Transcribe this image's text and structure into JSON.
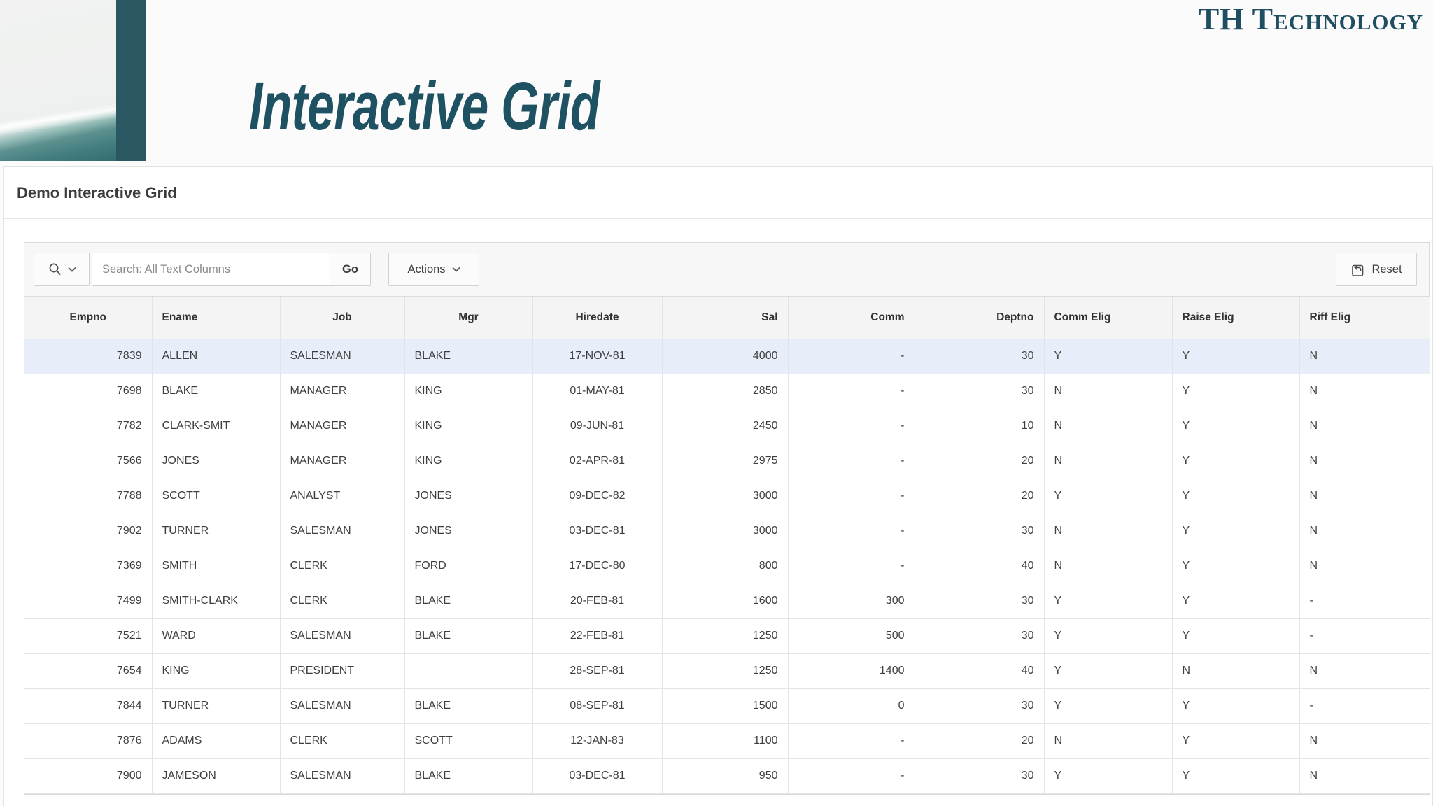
{
  "logo_text": "TH Technology",
  "page_title": "Interactive Grid",
  "colors": {
    "brand_teal": "#1f4e63",
    "title_teal": "#1e5162",
    "brand_bar": "#295863",
    "selected_row_bg": "#e8eef9"
  },
  "region": {
    "title": "Demo Interactive Grid",
    "toolbar": {
      "search_placeholder": "Search: All Text Columns",
      "search_value": "",
      "go_label": "Go",
      "actions_label": "Actions",
      "reset_label": "Reset"
    },
    "grid": {
      "columns": [
        "Empno",
        "Ename",
        "Job",
        "Mgr",
        "Hiredate",
        "Sal",
        "Comm",
        "Deptno",
        "Comm Elig",
        "Raise Elig",
        "Riff Elig"
      ],
      "selected_row": 0,
      "rows": [
        [
          "7839",
          "ALLEN",
          "SALESMAN",
          "BLAKE",
          "17-NOV-81",
          "4000",
          "-",
          "30",
          "Y",
          "Y",
          "N"
        ],
        [
          "7698",
          "BLAKE",
          "MANAGER",
          "KING",
          "01-MAY-81",
          "2850",
          "-",
          "30",
          "N",
          "Y",
          "N"
        ],
        [
          "7782",
          "CLARK-SMIT",
          "MANAGER",
          "KING",
          "09-JUN-81",
          "2450",
          "-",
          "10",
          "N",
          "Y",
          "N"
        ],
        [
          "7566",
          "JONES",
          "MANAGER",
          "KING",
          "02-APR-81",
          "2975",
          "-",
          "20",
          "N",
          "Y",
          "N"
        ],
        [
          "7788",
          "SCOTT",
          "ANALYST",
          "JONES",
          "09-DEC-82",
          "3000",
          "-",
          "20",
          "Y",
          "Y",
          "N"
        ],
        [
          "7902",
          "TURNER",
          "SALESMAN",
          "JONES",
          "03-DEC-81",
          "3000",
          "-",
          "30",
          "N",
          "Y",
          "N"
        ],
        [
          "7369",
          "SMITH",
          "CLERK",
          "FORD",
          "17-DEC-80",
          "800",
          "-",
          "40",
          "N",
          "Y",
          "N"
        ],
        [
          "7499",
          "SMITH-CLARK",
          "CLERK",
          "BLAKE",
          "20-FEB-81",
          "1600",
          "300",
          "30",
          "Y",
          "Y",
          "-"
        ],
        [
          "7521",
          "WARD",
          "SALESMAN",
          "BLAKE",
          "22-FEB-81",
          "1250",
          "500",
          "30",
          "Y",
          "Y",
          "-"
        ],
        [
          "7654",
          "KING",
          "PRESIDENT",
          "",
          "28-SEP-81",
          "1250",
          "1400",
          "40",
          "Y",
          "N",
          "N"
        ],
        [
          "7844",
          "TURNER",
          "SALESMAN",
          "BLAKE",
          "08-SEP-81",
          "1500",
          "0",
          "30",
          "Y",
          "Y",
          "-"
        ],
        [
          "7876",
          "ADAMS",
          "CLERK",
          "SCOTT",
          "12-JAN-83",
          "1100",
          "-",
          "20",
          "N",
          "Y",
          "N"
        ],
        [
          "7900",
          "JAMESON",
          "SALESMAN",
          "BLAKE",
          "03-DEC-81",
          "950",
          "-",
          "30",
          "Y",
          "Y",
          "N"
        ]
      ]
    }
  }
}
